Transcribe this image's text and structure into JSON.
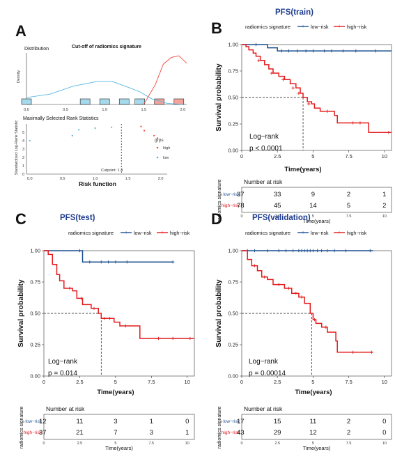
{
  "colors": {
    "low": "#1b4f8f",
    "high": "#e41a1c",
    "title": "#1f3c8f",
    "hist_low": "#a6d9ec",
    "hist_high": "#f2a39a",
    "density_low": "#58b8e0",
    "density_high": "#ef4a3c"
  },
  "panelA": {
    "letter": "A",
    "title": "Cut-off of radiomics signature",
    "dist_label": "Distribution",
    "density_ylabel": "Density",
    "dist_xticks": [
      "0.0",
      "0.5",
      "1.0",
      "1.5",
      "2.0"
    ],
    "stat_title": "Maximally Selected Rank Statistics",
    "stat_ylabel": "Standardized Log-Rank Statistic",
    "stat_xlabel": "Risk function",
    "stat_yticks": [
      "0",
      "1",
      "2",
      "3",
      "4",
      "5"
    ],
    "stat_xticks": [
      "0.0",
      "0.5",
      "1.0",
      "1.5",
      "2.0"
    ],
    "legend_title": "grps",
    "legend_items": [
      "high",
      "low"
    ],
    "cutpoint_label": "Cutpoint: 1.4"
  },
  "chart_data": [
    {
      "panel": "A-distribution",
      "type": "area",
      "title": "Cut-off of radiomics signature",
      "subtitle": "Distribution",
      "ylabel": "Density",
      "xlim": [
        0,
        2.05
      ],
      "hist_bins": [
        {
          "x": 0.0,
          "group": "low"
        },
        {
          "x": 0.75,
          "group": "low"
        },
        {
          "x": 1.0,
          "group": "low"
        },
        {
          "x": 1.25,
          "group": "low"
        },
        {
          "x": 1.45,
          "group": "low"
        },
        {
          "x": 1.7,
          "group": "high"
        },
        {
          "x": 1.95,
          "group": "high"
        }
      ],
      "series": [
        {
          "name": "low",
          "x": [
            0.0,
            0.3,
            0.6,
            0.9,
            1.1,
            1.3,
            1.45,
            1.6,
            1.8,
            2.0
          ],
          "y": [
            0.12,
            0.18,
            0.32,
            0.4,
            0.4,
            0.3,
            0.22,
            0.1,
            0.02,
            0.0
          ]
        },
        {
          "name": "high",
          "x": [
            1.5,
            1.65,
            1.75,
            1.85,
            1.95,
            2.05
          ],
          "y": [
            0.0,
            0.35,
            0.7,
            0.82,
            0.85,
            0.72
          ]
        }
      ]
    },
    {
      "panel": "A-statistic",
      "type": "scatter",
      "title": "Maximally Selected Rank Statistics",
      "xlabel": "Risk function",
      "ylabel": "Standardized Log-Rank Statistic",
      "xlim": [
        -0.05,
        2.1
      ],
      "ylim": [
        0,
        6
      ],
      "cutpoint": 1.4,
      "series": [
        {
          "name": "low",
          "x": [
            0.0,
            0.65,
            0.75,
            1.0,
            1.25
          ],
          "y": [
            4.0,
            4.6,
            5.3,
            5.5,
            5.6
          ]
        },
        {
          "name": "high",
          "x": [
            1.7,
            1.75,
            1.9,
            1.95
          ],
          "y": [
            5.7,
            5.2,
            4.6,
            4.3
          ]
        }
      ]
    },
    {
      "panel": "B",
      "letter": "B",
      "type": "line",
      "title": "PFS(train)",
      "legend_title": "radiomics signature",
      "ylabel": "Survival probability",
      "xlabel": "Time(years)",
      "xlim": [
        0,
        10.5
      ],
      "ylim": [
        0,
        1
      ],
      "xticks": [
        0,
        2.5,
        5,
        7.5,
        10
      ],
      "yticks": [
        "0.00",
        "0.25",
        "0.50",
        "0.75",
        "1.00"
      ],
      "stat_label": "Log−rank",
      "p_label": "p < 0.0001",
      "median_time": 4.3,
      "series": [
        {
          "name": "low−risk",
          "steps": [
            [
              0,
              1.0
            ],
            [
              1.8,
              0.97
            ],
            [
              2.5,
              0.94
            ],
            [
              10.5,
              0.94
            ]
          ],
          "censor": [
            [
              1.0,
              1.0
            ],
            [
              2.8,
              0.94
            ],
            [
              3.3,
              0.94
            ],
            [
              3.9,
              0.94
            ],
            [
              4.5,
              0.94
            ],
            [
              5.0,
              0.94
            ],
            [
              5.8,
              0.94
            ],
            [
              6.3,
              0.94
            ],
            [
              7.1,
              0.94
            ],
            [
              8.0,
              0.94
            ],
            [
              9.4,
              0.94
            ]
          ]
        },
        {
          "name": "high−risk",
          "steps": [
            [
              0,
              1.0
            ],
            [
              0.3,
              0.98
            ],
            [
              0.5,
              0.95
            ],
            [
              0.8,
              0.92
            ],
            [
              1.0,
              0.89
            ],
            [
              1.3,
              0.85
            ],
            [
              1.6,
              0.81
            ],
            [
              1.9,
              0.77
            ],
            [
              2.2,
              0.73
            ],
            [
              2.6,
              0.7
            ],
            [
              3.0,
              0.67
            ],
            [
              3.4,
              0.63
            ],
            [
              3.8,
              0.59
            ],
            [
              4.1,
              0.54
            ],
            [
              4.3,
              0.5
            ],
            [
              4.6,
              0.46
            ],
            [
              4.9,
              0.44
            ],
            [
              5.1,
              0.4
            ],
            [
              5.5,
              0.37
            ],
            [
              6.5,
              0.33
            ],
            [
              6.7,
              0.26
            ],
            [
              8.9,
              0.17
            ],
            [
              10.5,
              0.17
            ]
          ],
          "censor": [
            [
              1.2,
              0.85
            ],
            [
              2.1,
              0.73
            ],
            [
              2.9,
              0.67
            ],
            [
              3.6,
              0.59
            ],
            [
              4.0,
              0.54
            ],
            [
              4.7,
              0.44
            ],
            [
              6.0,
              0.37
            ],
            [
              7.8,
              0.26
            ],
            [
              8.3,
              0.26
            ],
            [
              10.3,
              0.17
            ]
          ]
        }
      ],
      "risk_table": {
        "title": "Number at risk",
        "ylabel": "radiomics signature",
        "xlabel": "Time(years)",
        "rows": [
          {
            "label": "low−risk",
            "values": [
              "37",
              "33",
              "9",
              "2",
              "1"
            ]
          },
          {
            "label": "high−risk",
            "values": [
              "78",
              "45",
              "14",
              "5",
              "2"
            ]
          }
        ]
      }
    },
    {
      "panel": "C",
      "letter": "C",
      "type": "line",
      "title": "PFS(test)",
      "legend_title": "radiomics signature",
      "ylabel": "Survival probability",
      "xlabel": "Time(years)",
      "xlim": [
        0,
        10.5
      ],
      "ylim": [
        0,
        1
      ],
      "xticks": [
        0,
        2.5,
        5,
        7.5,
        10
      ],
      "yticks": [
        "0.00",
        "0.25",
        "0.50",
        "0.75",
        "1.00"
      ],
      "stat_label": "Log−rank",
      "p_label": "p = 0.014",
      "median_time": 4.0,
      "series": [
        {
          "name": "low−risk",
          "steps": [
            [
              0,
              1.0
            ],
            [
              2.7,
              0.91
            ],
            [
              9.0,
              0.91
            ]
          ],
          "censor": [
            [
              2.5,
              1.0
            ],
            [
              3.2,
              0.91
            ],
            [
              4.0,
              0.91
            ],
            [
              4.5,
              0.91
            ],
            [
              5.0,
              0.91
            ],
            [
              5.8,
              0.91
            ],
            [
              9.0,
              0.91
            ]
          ]
        },
        {
          "name": "high−risk",
          "steps": [
            [
              0,
              1.0
            ],
            [
              0.3,
              0.97
            ],
            [
              0.6,
              0.89
            ],
            [
              0.9,
              0.81
            ],
            [
              1.1,
              0.76
            ],
            [
              1.4,
              0.7
            ],
            [
              2.0,
              0.68
            ],
            [
              2.3,
              0.62
            ],
            [
              2.7,
              0.57
            ],
            [
              3.3,
              0.54
            ],
            [
              3.8,
              0.5
            ],
            [
              4.0,
              0.46
            ],
            [
              4.9,
              0.43
            ],
            [
              5.3,
              0.4
            ],
            [
              6.7,
              0.3
            ],
            [
              10.5,
              0.3
            ]
          ],
          "censor": [
            [
              1.8,
              0.7
            ],
            [
              2.6,
              0.62
            ],
            [
              3.5,
              0.54
            ],
            [
              4.2,
              0.46
            ],
            [
              4.6,
              0.46
            ],
            [
              5.7,
              0.4
            ],
            [
              8.0,
              0.3
            ],
            [
              9.0,
              0.3
            ],
            [
              10.2,
              0.3
            ]
          ]
        }
      ],
      "risk_table": {
        "title": "Number at risk",
        "ylabel": "radiomics signature",
        "xlabel": "Time(years)",
        "rows": [
          {
            "label": "low−risk",
            "values": [
              "12",
              "11",
              "3",
              "1",
              "0"
            ]
          },
          {
            "label": "high−risk",
            "values": [
              "37",
              "21",
              "7",
              "3",
              "1"
            ]
          }
        ]
      }
    },
    {
      "panel": "D",
      "letter": "D",
      "type": "line",
      "title": "PFS(validation)",
      "legend_title": "radiomics signature",
      "ylabel": "Survival probability",
      "xlabel": "Time(years)",
      "xlim": [
        0,
        10.5
      ],
      "ylim": [
        0,
        1
      ],
      "xticks": [
        0,
        2.5,
        5,
        7.5,
        10
      ],
      "yticks": [
        "0.00",
        "0.25",
        "0.50",
        "0.75",
        "1.00"
      ],
      "stat_label": "Log−rank",
      "p_label": "p = 0.00014",
      "median_time": 4.9,
      "series": [
        {
          "name": "low−risk",
          "steps": [
            [
              0,
              1.0
            ],
            [
              9.2,
              1.0
            ]
          ],
          "censor": [
            [
              0.4,
              1.0
            ],
            [
              0.9,
              1.0
            ],
            [
              1.8,
              1.0
            ],
            [
              2.6,
              1.0
            ],
            [
              3.1,
              1.0
            ],
            [
              3.6,
              1.0
            ],
            [
              4.0,
              1.0
            ],
            [
              4.2,
              1.0
            ],
            [
              4.4,
              1.0
            ],
            [
              4.6,
              1.0
            ],
            [
              4.8,
              1.0
            ],
            [
              5.0,
              1.0
            ],
            [
              5.3,
              1.0
            ],
            [
              5.6,
              1.0
            ],
            [
              6.0,
              1.0
            ],
            [
              6.5,
              1.0
            ],
            [
              7.3,
              1.0
            ],
            [
              9.0,
              1.0
            ]
          ]
        },
        {
          "name": "high−risk",
          "steps": [
            [
              0,
              1.0
            ],
            [
              0.4,
              0.93
            ],
            [
              0.7,
              0.88
            ],
            [
              1.1,
              0.84
            ],
            [
              1.4,
              0.79
            ],
            [
              1.8,
              0.77
            ],
            [
              2.2,
              0.73
            ],
            [
              3.0,
              0.7
            ],
            [
              3.5,
              0.66
            ],
            [
              4.0,
              0.63
            ],
            [
              4.4,
              0.58
            ],
            [
              4.8,
              0.5
            ],
            [
              5.0,
              0.45
            ],
            [
              5.2,
              0.42
            ],
            [
              5.6,
              0.39
            ],
            [
              6.0,
              0.35
            ],
            [
              6.6,
              0.28
            ],
            [
              6.7,
              0.19
            ],
            [
              9.2,
              0.19
            ]
          ],
          "censor": [
            [
              0.9,
              0.88
            ],
            [
              1.6,
              0.79
            ],
            [
              2.6,
              0.73
            ],
            [
              3.3,
              0.7
            ],
            [
              3.8,
              0.66
            ],
            [
              4.2,
              0.63
            ],
            [
              5.1,
              0.45
            ],
            [
              5.9,
              0.39
            ],
            [
              7.8,
              0.19
            ],
            [
              9.1,
              0.19
            ]
          ]
        }
      ],
      "risk_table": {
        "title": "Number at risk",
        "ylabel": "radiomics signature",
        "xlabel": "Time(years)",
        "rows": [
          {
            "label": "low−risk",
            "values": [
              "17",
              "15",
              "11",
              "2",
              "0"
            ]
          },
          {
            "label": "high−risk",
            "values": [
              "43",
              "29",
              "12",
              "2",
              "0"
            ]
          }
        ]
      }
    }
  ]
}
